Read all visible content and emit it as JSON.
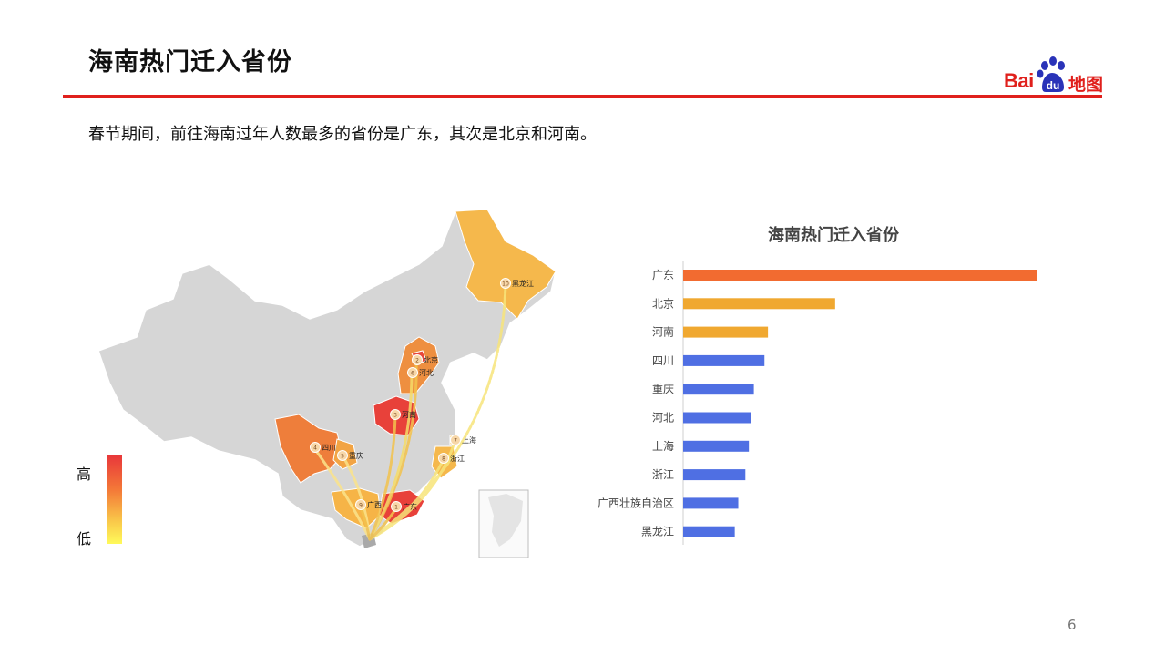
{
  "header": {
    "title": "海南热门迁入省份",
    "subtitle": "春节期间，前往海南过年人数最多的省份是广东，其次是北京和河南。"
  },
  "logo": {
    "text_bai": "Bai",
    "text_du": "du",
    "text_map": "地图"
  },
  "legend": {
    "high_label": "高",
    "low_label": "低"
  },
  "map": {
    "provinces": [
      {
        "name": "广东",
        "rank": "1"
      },
      {
        "name": "北京",
        "rank": "2"
      },
      {
        "name": "河南",
        "rank": "3"
      },
      {
        "name": "四川",
        "rank": "4"
      },
      {
        "name": "重庆",
        "rank": "5"
      },
      {
        "name": "河北",
        "rank": "6"
      },
      {
        "name": "上海",
        "rank": "7"
      },
      {
        "name": "浙江",
        "rank": "8"
      },
      {
        "name": "广西",
        "rank": "9"
      },
      {
        "name": "黑龙江",
        "rank": "10"
      }
    ]
  },
  "chart_data": {
    "type": "bar",
    "orientation": "horizontal",
    "title": "海南热门迁入省份",
    "categories": [
      "广东",
      "北京",
      "河南",
      "四川",
      "重庆",
      "河北",
      "上海",
      "浙江",
      "广西壮族自治区",
      "黑龙江"
    ],
    "values": [
      100,
      43,
      24,
      23,
      20,
      19.2,
      18.6,
      17.6,
      15.6,
      14.6
    ],
    "colors": [
      "#f26b30",
      "#f0a830",
      "#f0a830",
      "#4f6fe3",
      "#4f6fe3",
      "#4f6fe3",
      "#4f6fe3",
      "#4f6fe3",
      "#4f6fe3",
      "#4f6fe3"
    ],
    "xlim": [
      0,
      100
    ]
  },
  "page": {
    "number": "6"
  }
}
